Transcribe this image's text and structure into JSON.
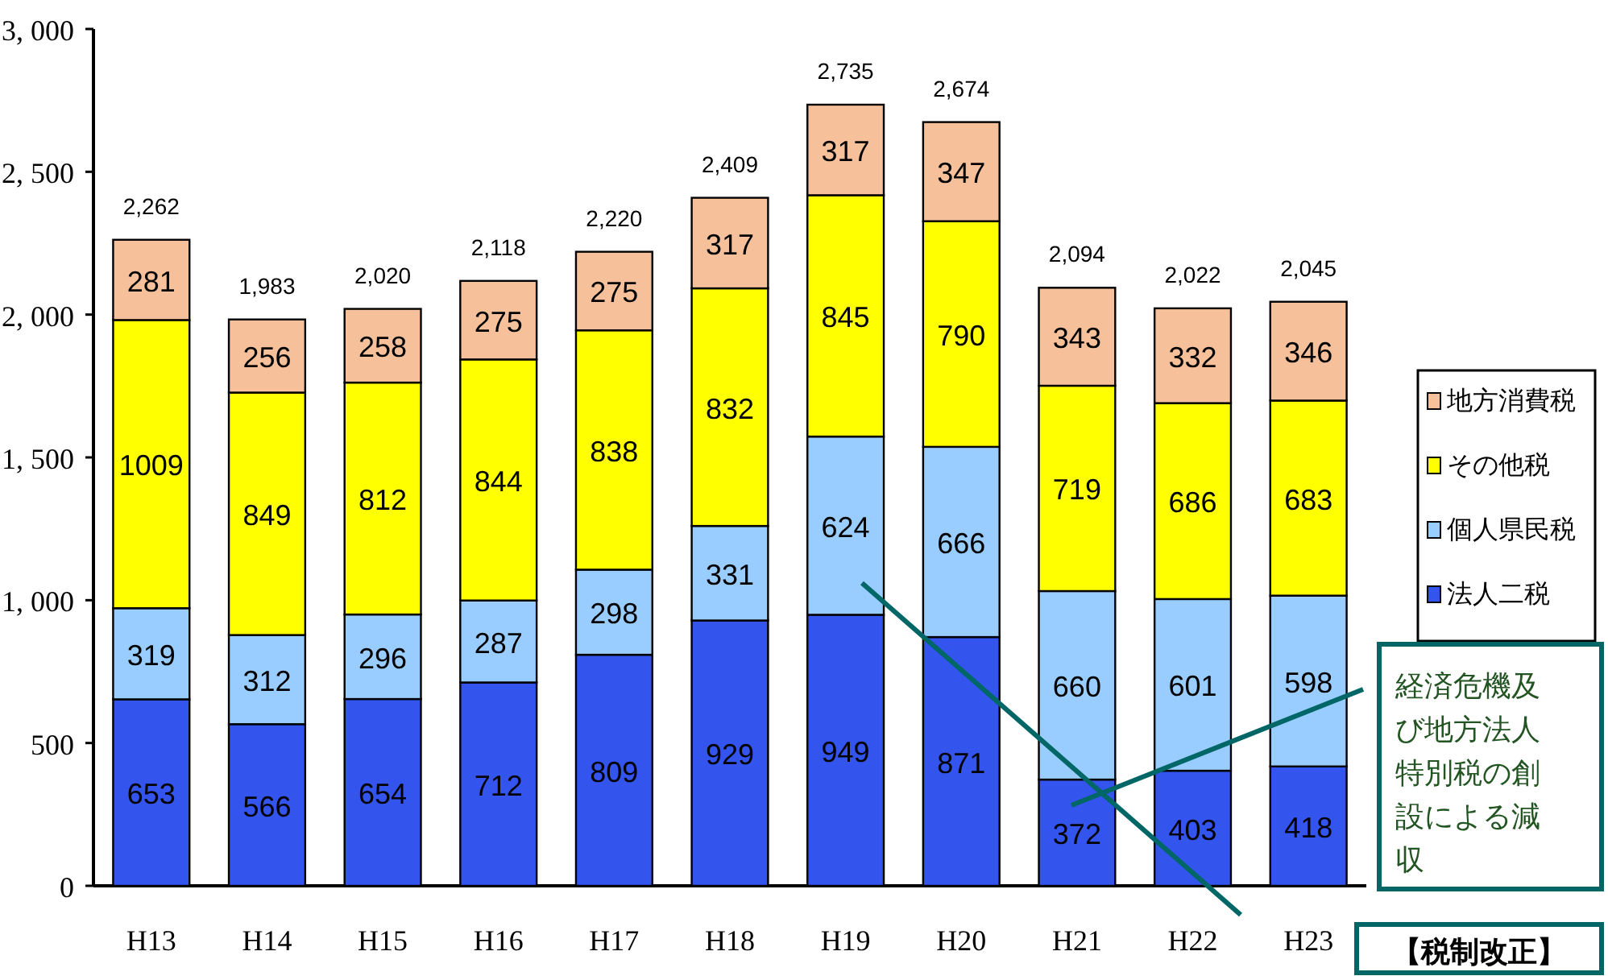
{
  "chart_data": {
    "type": "bar",
    "stacked": true,
    "categories": [
      "H13",
      "H14",
      "H15",
      "H16",
      "H17",
      "H18",
      "H19",
      "H20",
      "H21",
      "H22",
      "H23"
    ],
    "series": [
      {
        "name": "法人二税",
        "color": "#3355ee",
        "values": [
          653,
          566,
          654,
          712,
          809,
          929,
          949,
          871,
          372,
          403,
          418
        ]
      },
      {
        "name": "個人県民税",
        "color": "#99ccff",
        "values": [
          319,
          312,
          296,
          287,
          298,
          331,
          624,
          666,
          660,
          601,
          598
        ]
      },
      {
        "name": "その他税",
        "color": "#ffff00",
        "values": [
          1009,
          849,
          812,
          844,
          838,
          832,
          845,
          790,
          719,
          686,
          683
        ]
      },
      {
        "name": "地方消費税",
        "color": "#f5c09a",
        "values": [
          281,
          256,
          258,
          275,
          275,
          317,
          317,
          347,
          343,
          332,
          346
        ]
      }
    ],
    "totals": [
      "2,262",
      "1,983",
      "2,020",
      "2,118",
      "2,220",
      "2,409",
      "2,735",
      "2,674",
      "2,094",
      "2,022",
      "2,045"
    ],
    "data_labels": true,
    "ylim": [
      0,
      3000
    ],
    "yticks": [
      {
        "value": 0,
        "label": "0"
      },
      {
        "value": 500,
        "label": "500"
      },
      {
        "value": 1000,
        "label": "1, 000"
      },
      {
        "value": 1500,
        "label": "1, 500"
      },
      {
        "value": 2000,
        "label": "2, 000"
      },
      {
        "value": 2500,
        "label": "2, 500"
      },
      {
        "value": 3000,
        "label": "3, 000"
      }
    ],
    "legend": "right",
    "annotations": [
      "経済危機及び地方法人特別税の創設による減収",
      "【税制改正】"
    ]
  }
}
